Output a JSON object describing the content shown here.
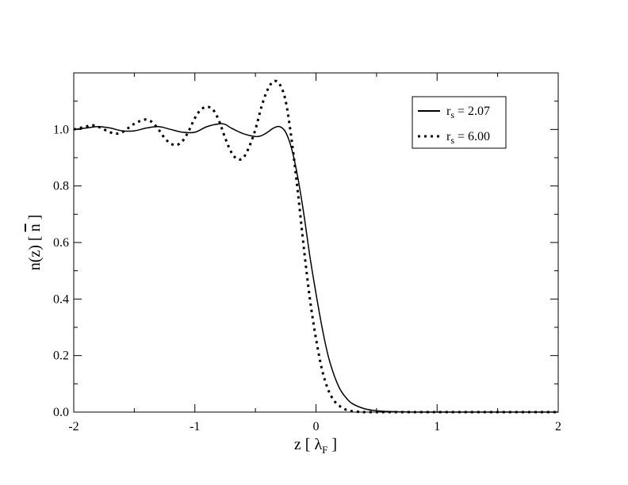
{
  "chart_data": {
    "type": "line",
    "xlabel": {
      "main": "z [ ",
      "symbol": "λ",
      "sub": "F",
      "end": " ]"
    },
    "ylabel": {
      "main": "n(z) [ ",
      "symbol": "n",
      "end": " ]"
    },
    "xlim": [
      -2,
      2
    ],
    "ylim": [
      0,
      1.2
    ],
    "x_ticks": [
      -2,
      -1,
      0,
      1,
      2
    ],
    "x_tick_labels": [
      "-2",
      "-1",
      "0",
      "1",
      "2"
    ],
    "y_ticks": [
      0.0,
      0.2,
      0.4,
      0.6,
      0.8,
      1.0
    ],
    "y_tick_labels": [
      "0.0",
      "0.2",
      "0.4",
      "0.6",
      "0.8",
      "1.0"
    ],
    "grid": false,
    "legend_position": "top-right",
    "series": [
      {
        "name": "r_s = 2.07",
        "legend": {
          "main": "r",
          "sub": "s",
          "rest": " = 2.07"
        },
        "style": "solid",
        "x": [
          -2.0,
          -1.9,
          -1.8,
          -1.7,
          -1.6,
          -1.5,
          -1.4,
          -1.3,
          -1.2,
          -1.1,
          -1.0,
          -0.9,
          -0.8,
          -0.75,
          -0.7,
          -0.6,
          -0.5,
          -0.45,
          -0.4,
          -0.35,
          -0.3,
          -0.25,
          -0.2,
          -0.15,
          -0.1,
          -0.05,
          0.0,
          0.05,
          0.1,
          0.15,
          0.2,
          0.25,
          0.3,
          0.4,
          0.5,
          0.6,
          0.8,
          1.0,
          1.5,
          2.0
        ],
        "values": [
          1.0,
          1.005,
          1.01,
          1.005,
          0.995,
          0.995,
          1.005,
          1.01,
          1.0,
          0.99,
          0.99,
          1.01,
          1.02,
          1.018,
          1.005,
          0.985,
          0.975,
          0.978,
          0.99,
          1.005,
          1.01,
          0.99,
          0.93,
          0.83,
          0.7,
          0.55,
          0.42,
          0.3,
          0.2,
          0.13,
          0.08,
          0.05,
          0.03,
          0.012,
          0.005,
          0.002,
          0.0,
          0.0,
          0.0,
          0.0
        ]
      },
      {
        "name": "r_s = 6.00",
        "legend": {
          "main": "r",
          "sub": "s",
          "rest": " = 6.00"
        },
        "style": "dotted",
        "x": [
          -2.0,
          -1.95,
          -1.9,
          -1.85,
          -1.8,
          -1.75,
          -1.7,
          -1.65,
          -1.6,
          -1.55,
          -1.5,
          -1.45,
          -1.4,
          -1.35,
          -1.3,
          -1.25,
          -1.2,
          -1.15,
          -1.1,
          -1.05,
          -1.0,
          -0.95,
          -0.9,
          -0.85,
          -0.8,
          -0.75,
          -0.7,
          -0.65,
          -0.6,
          -0.55,
          -0.5,
          -0.45,
          -0.4,
          -0.35,
          -0.3,
          -0.25,
          -0.2,
          -0.15,
          -0.1,
          -0.05,
          0.0,
          0.05,
          0.1,
          0.15,
          0.2,
          0.25,
          0.3,
          0.35,
          0.4,
          0.5,
          0.6,
          0.8,
          1.0,
          1.5,
          2.0
        ],
        "values": [
          1.0,
          1.005,
          1.01,
          1.015,
          1.01,
          1.0,
          0.99,
          0.985,
          0.99,
          1.005,
          1.02,
          1.03,
          1.035,
          1.025,
          1.0,
          0.97,
          0.95,
          0.945,
          0.96,
          0.995,
          1.04,
          1.07,
          1.08,
          1.07,
          1.03,
          0.97,
          0.92,
          0.895,
          0.9,
          0.94,
          1.0,
          1.08,
          1.14,
          1.17,
          1.16,
          1.1,
          0.96,
          0.78,
          0.58,
          0.4,
          0.26,
          0.15,
          0.08,
          0.04,
          0.02,
          0.008,
          0.003,
          0.001,
          0.0,
          0.0,
          0.0,
          0.0,
          0.0,
          0.0,
          0.0
        ]
      }
    ]
  }
}
